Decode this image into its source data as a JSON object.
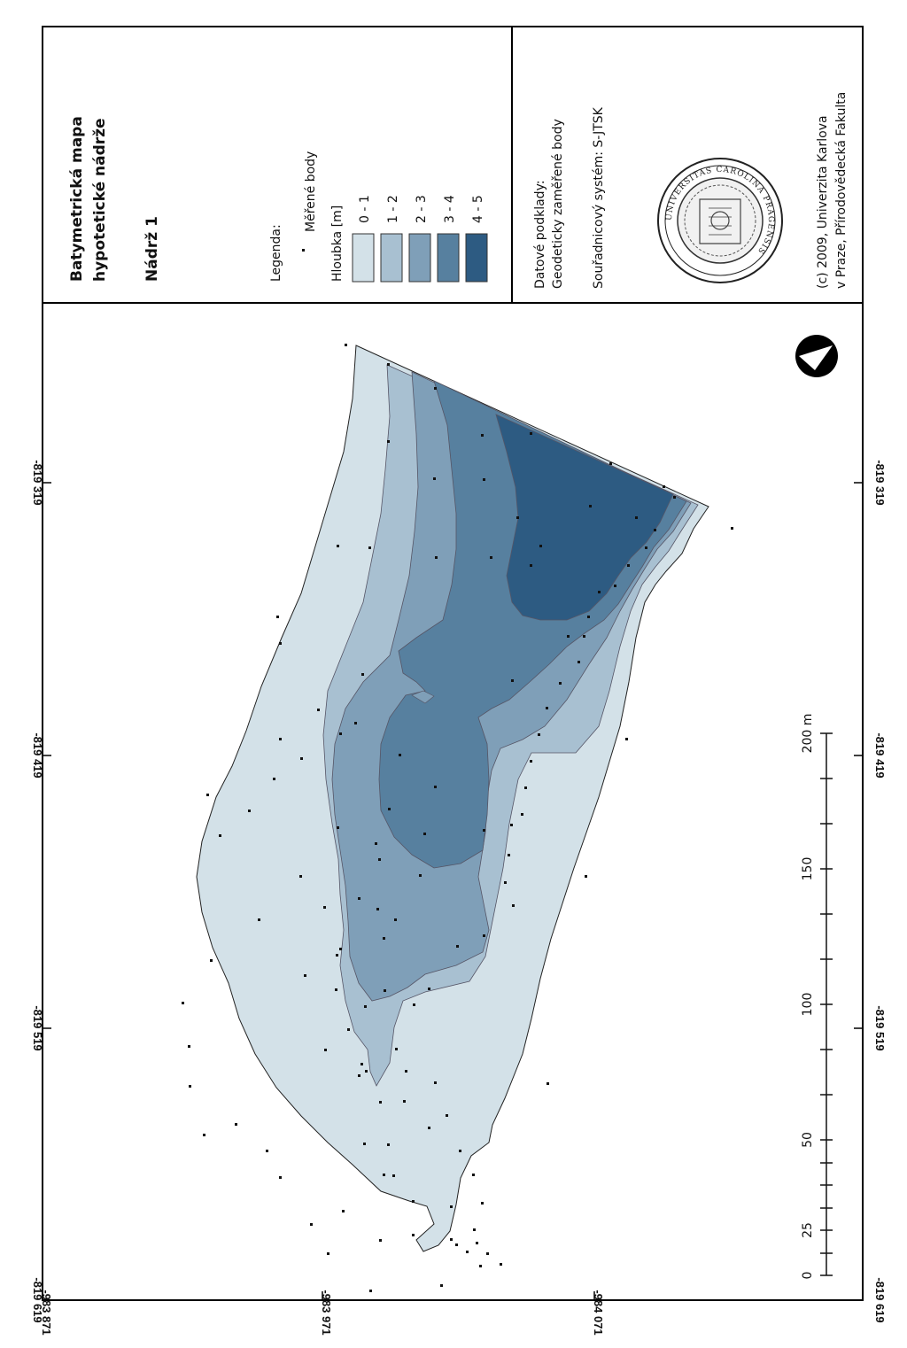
{
  "title": {
    "line1": "Batymetrická mapa",
    "line2": "hypotetické nádrže",
    "subtitle": "Nádrž 1"
  },
  "legend": {
    "heading": "Legenda:",
    "points_label": "Měřené body",
    "depth_heading": "Hloubka [m]",
    "classes": [
      {
        "label": "0 - 1",
        "color": "#d3e1e8"
      },
      {
        "label": "1 - 2",
        "color": "#a8c0d1"
      },
      {
        "label": "2 - 3",
        "color": "#7f9fb8"
      },
      {
        "label": "3 - 4",
        "color": "#57809f"
      },
      {
        "label": "4 - 5",
        "color": "#2d5b82"
      }
    ]
  },
  "sources": {
    "line1": "Datové podklady:",
    "line2": "Geodeticky zaměřené body",
    "crs": "Souřadnicový systém: S-JTSK"
  },
  "seal": {
    "text": "UNIVERSITAS CAROLINA PRAGENSIS"
  },
  "credits": {
    "line1": "(c) 2009, Univerzita Karlova",
    "line2": "v Praze, Přírodovědecká Fakulta"
  },
  "coordinates": {
    "top": [
      "-819 319",
      "-819 419",
      "-819 519",
      "-819 619"
    ],
    "bottom": [
      "-819 319",
      "-819 419",
      "-819 519",
      "-819 619"
    ],
    "left": [
      "-983 871",
      "-983 971",
      "-984 071"
    ]
  },
  "scale_bar": {
    "labels": [
      "0",
      "25",
      "50",
      "100",
      "150",
      "200 m"
    ]
  },
  "north_arrow": "north-arrow-icon"
}
